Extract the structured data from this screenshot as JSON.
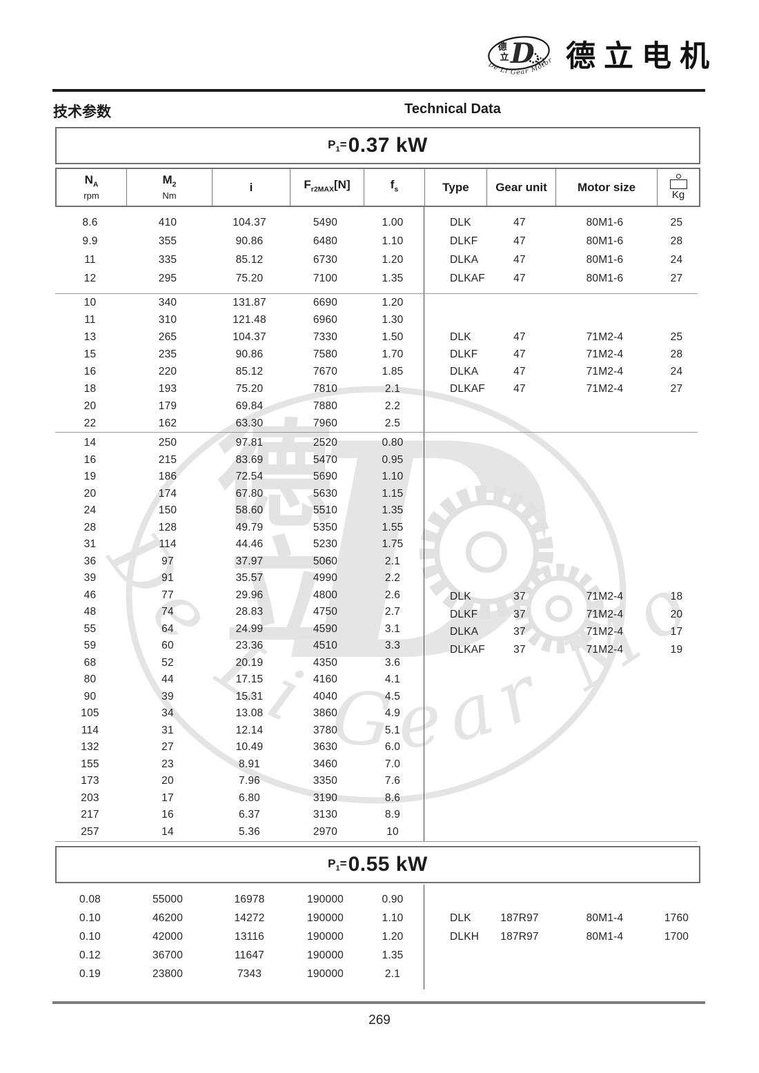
{
  "header": {
    "brand_cn": "德立电机",
    "section_cn": "技术参数",
    "section_en": "Technical Data",
    "emblem": {
      "cn1": "德",
      "cn2": "立",
      "d": "D",
      "arc_text": "De Li Gear Motor"
    }
  },
  "watermark": {
    "cn1": "德",
    "cn2": "立",
    "d": "D",
    "script": "De Li Gear Motor"
  },
  "columns": {
    "na": {
      "main": "N",
      "sub": "A",
      "unit": "rpm"
    },
    "m2": {
      "main": "M",
      "sub": "2",
      "unit": "Nm"
    },
    "i": {
      "label": "i"
    },
    "fr": {
      "main": "F",
      "sub": "r2MAX",
      "bracket": "[N]"
    },
    "fs": {
      "main": "f",
      "sub": "s"
    },
    "type": {
      "label": "Type"
    },
    "gear": {
      "label": "Gear unit"
    },
    "motor": {
      "label": "Motor size"
    },
    "kg": {
      "unit": "Kg"
    }
  },
  "sections": [
    {
      "title": {
        "main": "P",
        "sub": "1",
        "eq": "=",
        "value": "0.37 kW"
      },
      "blocks": [
        {
          "rows": [
            [
              "8.6",
              "410",
              "104.37",
              "5490",
              "1.00"
            ],
            [
              "9.9",
              "355",
              "90.86",
              "6480",
              "1.10"
            ],
            [
              "11",
              "335",
              "85.12",
              "6730",
              "1.20"
            ],
            [
              "12",
              "295",
              "75.20",
              "7100",
              "1.35"
            ]
          ],
          "types": [
            [
              "DLK",
              "47",
              "80M1-6",
              "25"
            ],
            [
              "DLKF",
              "47",
              "80M1-6",
              "28"
            ],
            [
              "DLKA",
              "47",
              "80M1-6",
              "24"
            ],
            [
              "DLKAF",
              "47",
              "80M1-6",
              "27"
            ]
          ]
        },
        {
          "rows": [
            [
              "10",
              "340",
              "131.87",
              "6690",
              "1.20"
            ],
            [
              "11",
              "310",
              "121.48",
              "6960",
              "1.30"
            ],
            [
              "13",
              "265",
              "104.37",
              "7330",
              "1.50"
            ],
            [
              "15",
              "235",
              "90.86",
              "7580",
              "1.70"
            ],
            [
              "16",
              "220",
              "85.12",
              "7670",
              "1.85"
            ],
            [
              "18",
              "193",
              "75.20",
              "7810",
              "2.1"
            ],
            [
              "20",
              "179",
              "69.84",
              "7880",
              "2.2"
            ],
            [
              "22",
              "162",
              "63.30",
              "7960",
              "2.5"
            ]
          ],
          "types": [
            [
              "DLK",
              "47",
              "71M2-4",
              "25"
            ],
            [
              "DLKF",
              "47",
              "71M2-4",
              "28"
            ],
            [
              "DLKA",
              "47",
              "71M2-4",
              "24"
            ],
            [
              "DLKAF",
              "47",
              "71M2-4",
              "27"
            ]
          ]
        },
        {
          "rows": [
            [
              "14",
              "250",
              "97.81",
              "2520",
              "0.80"
            ],
            [
              "16",
              "215",
              "83.69",
              "5470",
              "0.95"
            ],
            [
              "19",
              "186",
              "72.54",
              "5690",
              "1.10"
            ],
            [
              "20",
              "174",
              "67.80",
              "5630",
              "1.15"
            ],
            [
              "24",
              "150",
              "58.60",
              "5510",
              "1.35"
            ],
            [
              "28",
              "128",
              "49.79",
              "5350",
              "1.55"
            ],
            [
              "31",
              "114",
              "44.46",
              "5230",
              "1.75"
            ],
            [
              "36",
              "97",
              "37.97",
              "5060",
              "2.1"
            ],
            [
              "39",
              "91",
              "35.57",
              "4990",
              "2.2"
            ],
            [
              "46",
              "77",
              "29.96",
              "4800",
              "2.6"
            ],
            [
              "48",
              "74",
              "28.83",
              "4750",
              "2.7"
            ],
            [
              "55",
              "64",
              "24.99",
              "4590",
              "3.1"
            ],
            [
              "59",
              "60",
              "23.36",
              "4510",
              "3.3"
            ],
            [
              "68",
              "52",
              "20.19",
              "4350",
              "3.6"
            ],
            [
              "80",
              "44",
              "17.15",
              "4160",
              "4.1"
            ],
            [
              "90",
              "39",
              "15.31",
              "4040",
              "4.5"
            ],
            [
              "105",
              "34",
              "13.08",
              "3860",
              "4.9"
            ],
            [
              "114",
              "31",
              "12.14",
              "3780",
              "5.1"
            ],
            [
              "132",
              "27",
              "10.49",
              "3630",
              "6.0"
            ],
            [
              "155",
              "23",
              "8.91",
              "3460",
              "7.0"
            ],
            [
              "173",
              "20",
              "7.96",
              "3350",
              "7.6"
            ],
            [
              "203",
              "17",
              "6.80",
              "3190",
              "8.6"
            ],
            [
              "217",
              "16",
              "6.37",
              "3130",
              "8.9"
            ],
            [
              "257",
              "14",
              "5.36",
              "2970",
              "10"
            ]
          ],
          "types": [
            [
              "DLK",
              "37",
              "71M2-4",
              "18"
            ],
            [
              "DLKF",
              "37",
              "71M2-4",
              "20"
            ],
            [
              "DLKA",
              "37",
              "71M2-4",
              "17"
            ],
            [
              "DLKAF",
              "37",
              "71M2-4",
              "19"
            ]
          ]
        }
      ]
    },
    {
      "title": {
        "main": "P",
        "sub": "1",
        "eq": "=",
        "value": "0.55 kW"
      },
      "blocks": [
        {
          "rows": [
            [
              "0.08",
              "55000",
              "16978",
              "190000",
              "0.90"
            ],
            [
              "0.10",
              "46200",
              "14272",
              "190000",
              "1.10"
            ],
            [
              "0.10",
              "42000",
              "13116",
              "190000",
              "1.20"
            ],
            [
              "0.12",
              "36700",
              "11647",
              "190000",
              "1.35"
            ],
            [
              "0.19",
              "23800",
              "7343",
              "190000",
              "2.1"
            ]
          ],
          "types": [
            [
              "DLK",
              "187R97",
              "80M1-4",
              "1760"
            ],
            [
              "DLKH",
              "187R97",
              "80M1-4",
              "1700"
            ]
          ]
        }
      ]
    }
  ],
  "page": {
    "number": "269"
  }
}
